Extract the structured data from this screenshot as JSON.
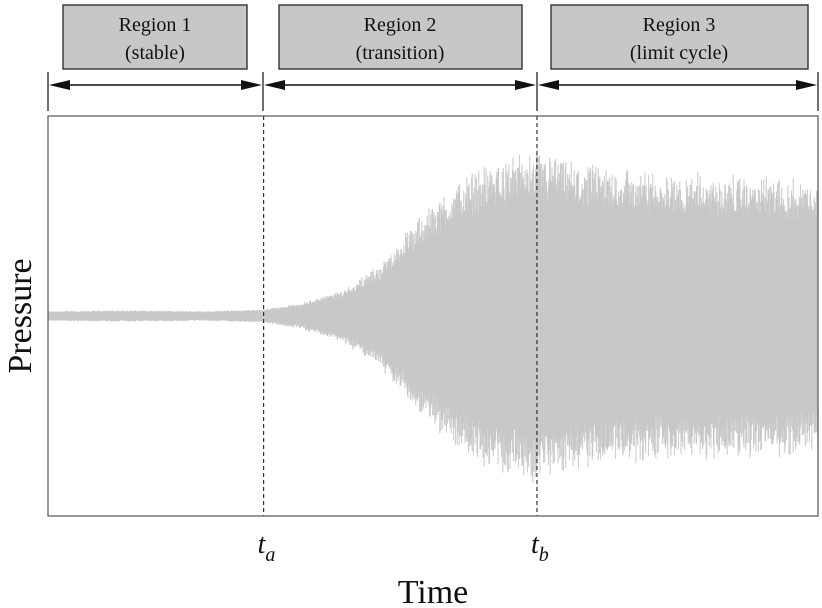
{
  "chart_data": {
    "type": "line",
    "xlabel": "Time",
    "ylabel": "Pressure",
    "grid": false,
    "markers": [
      {
        "base": "t",
        "sub": "a",
        "position": 0.28
      },
      {
        "base": "t",
        "sub": "b",
        "position": 0.635
      }
    ],
    "regions": [
      {
        "line1": "Region 1",
        "line2": "(stable)"
      },
      {
        "line1": "Region 2",
        "line2": "(transition)"
      },
      {
        "line1": "Region 3",
        "line2": "(limit cycle)"
      }
    ],
    "series": [
      {
        "color": "#c8c8c8",
        "envelope": {
          "x": [
            0,
            0.1,
            0.2,
            0.28,
            0.33,
            0.38,
            0.43,
            0.48,
            0.53,
            0.58,
            0.635,
            0.7,
            0.8,
            0.9,
            1.0
          ],
          "amplitude": [
            0.03,
            0.035,
            0.03,
            0.04,
            0.08,
            0.15,
            0.3,
            0.58,
            0.8,
            0.93,
            0.98,
            0.9,
            0.86,
            0.84,
            0.82
          ]
        }
      }
    ]
  }
}
